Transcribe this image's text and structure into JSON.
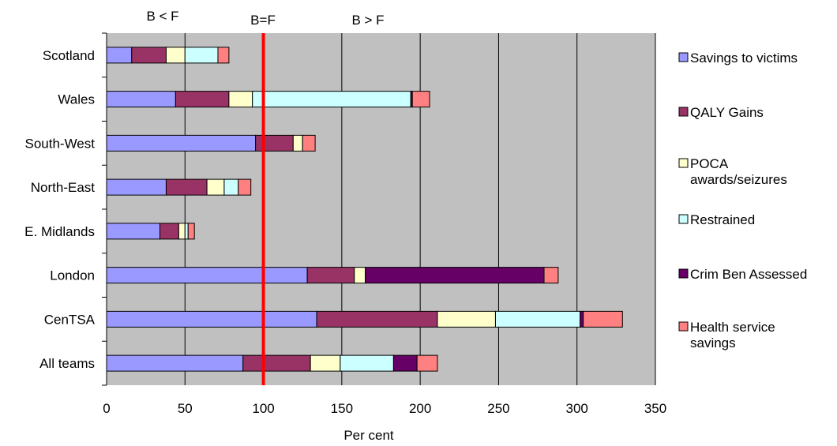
{
  "chart_data": {
    "type": "bar",
    "orientation": "horizontal",
    "stacked": true,
    "title": "",
    "xlabel": "Per cent",
    "ylabel": "",
    "xlim": [
      0,
      350
    ],
    "x_ticks": [
      0,
      50,
      100,
      150,
      200,
      250,
      300,
      350
    ],
    "grid": true,
    "legend_position": "right",
    "background_color": "#c0c0c0",
    "categories": [
      "Scotland",
      "Wales",
      "South-West",
      "North-East",
      "E. Midlands",
      "London",
      "CenTSA",
      "All teams"
    ],
    "series": [
      {
        "name": "Savings to victims",
        "color": "#9999ff",
        "values": [
          16,
          44,
          95,
          38,
          34,
          128,
          134,
          87
        ]
      },
      {
        "name": "QALY Gains",
        "color": "#993366",
        "values": [
          22,
          34,
          24,
          26,
          12,
          30,
          77,
          43
        ]
      },
      {
        "name": "POCA awards/seizures",
        "color": "#ffffcc",
        "values": [
          12,
          15,
          6,
          11,
          4,
          7,
          37,
          19
        ]
      },
      {
        "name": "Restrained",
        "color": "#ccffff",
        "values": [
          21,
          101,
          0,
          9,
          2,
          0,
          54,
          34
        ]
      },
      {
        "name": "Crim Ben Assessed",
        "color": "#660066",
        "values": [
          0,
          1,
          0,
          0,
          0,
          114,
          2,
          15
        ]
      },
      {
        "name": "Health service savings",
        "color": "#ff8080",
        "values": [
          7,
          11,
          8,
          8,
          4,
          9,
          25,
          13
        ]
      }
    ],
    "reference_line": {
      "value": 100,
      "label": "B=F",
      "color": "#ff0000"
    },
    "region_labels": {
      "left": "B < F",
      "right": "B > F"
    }
  }
}
